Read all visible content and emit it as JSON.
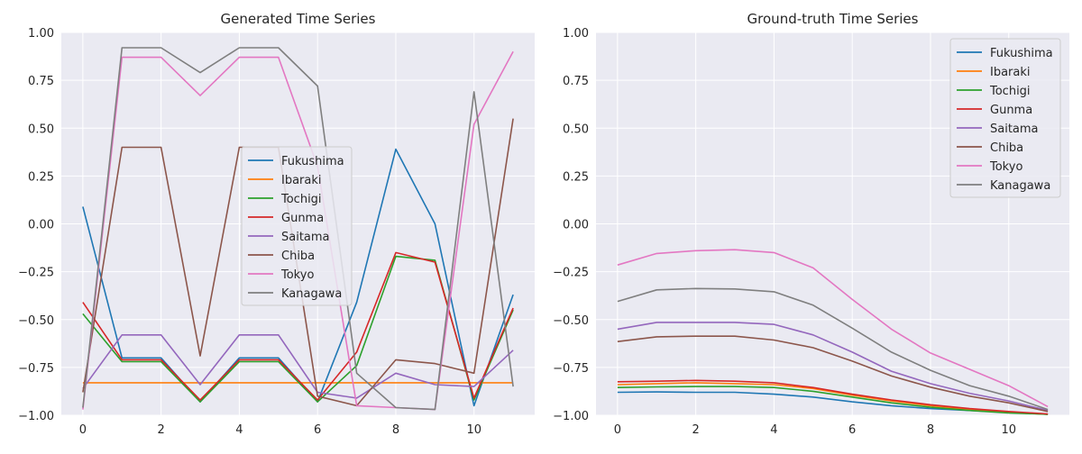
{
  "chart_data": [
    {
      "type": "line",
      "title": "Generated Time Series",
      "xlabel": "",
      "ylabel": "",
      "x": [
        0,
        1,
        2,
        3,
        4,
        5,
        6,
        7,
        8,
        9,
        10,
        11
      ],
      "xlim": [
        -0.55,
        11.55
      ],
      "ylim": [
        -1.0,
        1.0
      ],
      "xticks": [
        0,
        2,
        4,
        6,
        8,
        10
      ],
      "yticks": [
        -1.0,
        -0.75,
        -0.5,
        -0.25,
        0.0,
        0.25,
        0.5,
        0.75,
        1.0
      ],
      "ytick_labels": [
        "−1.00",
        "−0.75",
        "−0.50",
        "−0.25",
        "0.00",
        "0.25",
        "0.50",
        "0.75",
        "1.00"
      ],
      "grid": true,
      "legend": "center",
      "series": [
        {
          "name": "Fukushima",
          "color": "#1f77b4",
          "values": [
            0.09,
            -0.7,
            -0.7,
            -0.93,
            -0.7,
            -0.7,
            -0.93,
            -0.41,
            0.39,
            0.0,
            -0.95,
            -0.37
          ]
        },
        {
          "name": "Ibaraki",
          "color": "#ff7f0e",
          "values": [
            -0.83,
            -0.83,
            -0.83,
            -0.83,
            -0.83,
            -0.83,
            -0.83,
            -0.83,
            -0.83,
            -0.83,
            -0.83,
            -0.83
          ]
        },
        {
          "name": "Tochigi",
          "color": "#2ca02c",
          "values": [
            -0.47,
            -0.72,
            -0.72,
            -0.93,
            -0.72,
            -0.72,
            -0.93,
            -0.74,
            -0.17,
            -0.19,
            -0.92,
            -0.45
          ]
        },
        {
          "name": "Gunma",
          "color": "#d62728",
          "values": [
            -0.41,
            -0.71,
            -0.71,
            -0.92,
            -0.71,
            -0.71,
            -0.92,
            -0.67,
            -0.15,
            -0.2,
            -0.91,
            -0.44
          ]
        },
        {
          "name": "Saitama",
          "color": "#9467bd",
          "values": [
            -0.86,
            -0.58,
            -0.58,
            -0.84,
            -0.58,
            -0.58,
            -0.88,
            -0.91,
            -0.78,
            -0.84,
            -0.85,
            -0.66
          ]
        },
        {
          "name": "Chiba",
          "color": "#8c564b",
          "values": [
            -0.88,
            0.4,
            0.4,
            -0.69,
            0.4,
            0.4,
            -0.9,
            -0.95,
            -0.71,
            -0.73,
            -0.78,
            0.55
          ]
        },
        {
          "name": "Tokyo",
          "color": "#e377c2",
          "values": [
            -0.97,
            0.87,
            0.87,
            0.67,
            0.87,
            0.87,
            0.3,
            -0.95,
            -0.96,
            -0.97,
            0.52,
            0.9
          ]
        },
        {
          "name": "Kanagawa",
          "color": "#7f7f7f",
          "values": [
            -0.96,
            0.92,
            0.92,
            0.79,
            0.92,
            0.92,
            0.72,
            -0.78,
            -0.96,
            -0.97,
            0.69,
            -0.85
          ]
        }
      ]
    },
    {
      "type": "line",
      "title": "Ground-truth Time Series",
      "xlabel": "",
      "ylabel": "",
      "x": [
        0,
        1,
        2,
        3,
        4,
        5,
        6,
        7,
        8,
        9,
        10,
        11
      ],
      "xlim": [
        -0.55,
        11.55
      ],
      "ylim": [
        -1.0,
        1.0
      ],
      "xticks": [
        0,
        2,
        4,
        6,
        8,
        10
      ],
      "yticks": [
        -1.0,
        -0.75,
        -0.5,
        -0.25,
        0.0,
        0.25,
        0.5,
        0.75,
        1.0
      ],
      "ytick_labels": [
        "−1.00",
        "−0.75",
        "−0.50",
        "−0.25",
        "0.00",
        "0.25",
        "0.50",
        "0.75",
        "1.00"
      ],
      "grid": true,
      "legend": "upper right",
      "series": [
        {
          "name": "Fukushima",
          "color": "#1f77b4",
          "values": [
            -0.88,
            -0.878,
            -0.88,
            -0.88,
            -0.89,
            -0.905,
            -0.93,
            -0.95,
            -0.965,
            -0.975,
            -0.985,
            -0.995
          ]
        },
        {
          "name": "Ibaraki",
          "color": "#ff7f0e",
          "values": [
            -0.84,
            -0.835,
            -0.83,
            -0.835,
            -0.84,
            -0.86,
            -0.895,
            -0.925,
            -0.95,
            -0.97,
            -0.985,
            -0.995
          ]
        },
        {
          "name": "Tochigi",
          "color": "#2ca02c",
          "values": [
            -0.855,
            -0.852,
            -0.85,
            -0.85,
            -0.855,
            -0.875,
            -0.905,
            -0.935,
            -0.958,
            -0.975,
            -0.988,
            -0.995
          ]
        },
        {
          "name": "Gunma",
          "color": "#d62728",
          "values": [
            -0.825,
            -0.822,
            -0.818,
            -0.822,
            -0.83,
            -0.855,
            -0.89,
            -0.92,
            -0.945,
            -0.965,
            -0.98,
            -0.993
          ]
        },
        {
          "name": "Saitama",
          "color": "#9467bd",
          "values": [
            -0.55,
            -0.515,
            -0.515,
            -0.515,
            -0.525,
            -0.58,
            -0.67,
            -0.77,
            -0.835,
            -0.885,
            -0.925,
            -0.975
          ]
        },
        {
          "name": "Chiba",
          "color": "#8c564b",
          "values": [
            -0.615,
            -0.59,
            -0.587,
            -0.587,
            -0.607,
            -0.647,
            -0.717,
            -0.795,
            -0.853,
            -0.9,
            -0.935,
            -0.98
          ]
        },
        {
          "name": "Tokyo",
          "color": "#e377c2",
          "values": [
            -0.215,
            -0.155,
            -0.14,
            -0.135,
            -0.15,
            -0.23,
            -0.395,
            -0.55,
            -0.675,
            -0.76,
            -0.845,
            -0.955
          ]
        },
        {
          "name": "Kanagawa",
          "color": "#7f7f7f",
          "values": [
            -0.405,
            -0.345,
            -0.338,
            -0.34,
            -0.355,
            -0.425,
            -0.545,
            -0.67,
            -0.765,
            -0.845,
            -0.9,
            -0.97
          ]
        }
      ]
    }
  ]
}
